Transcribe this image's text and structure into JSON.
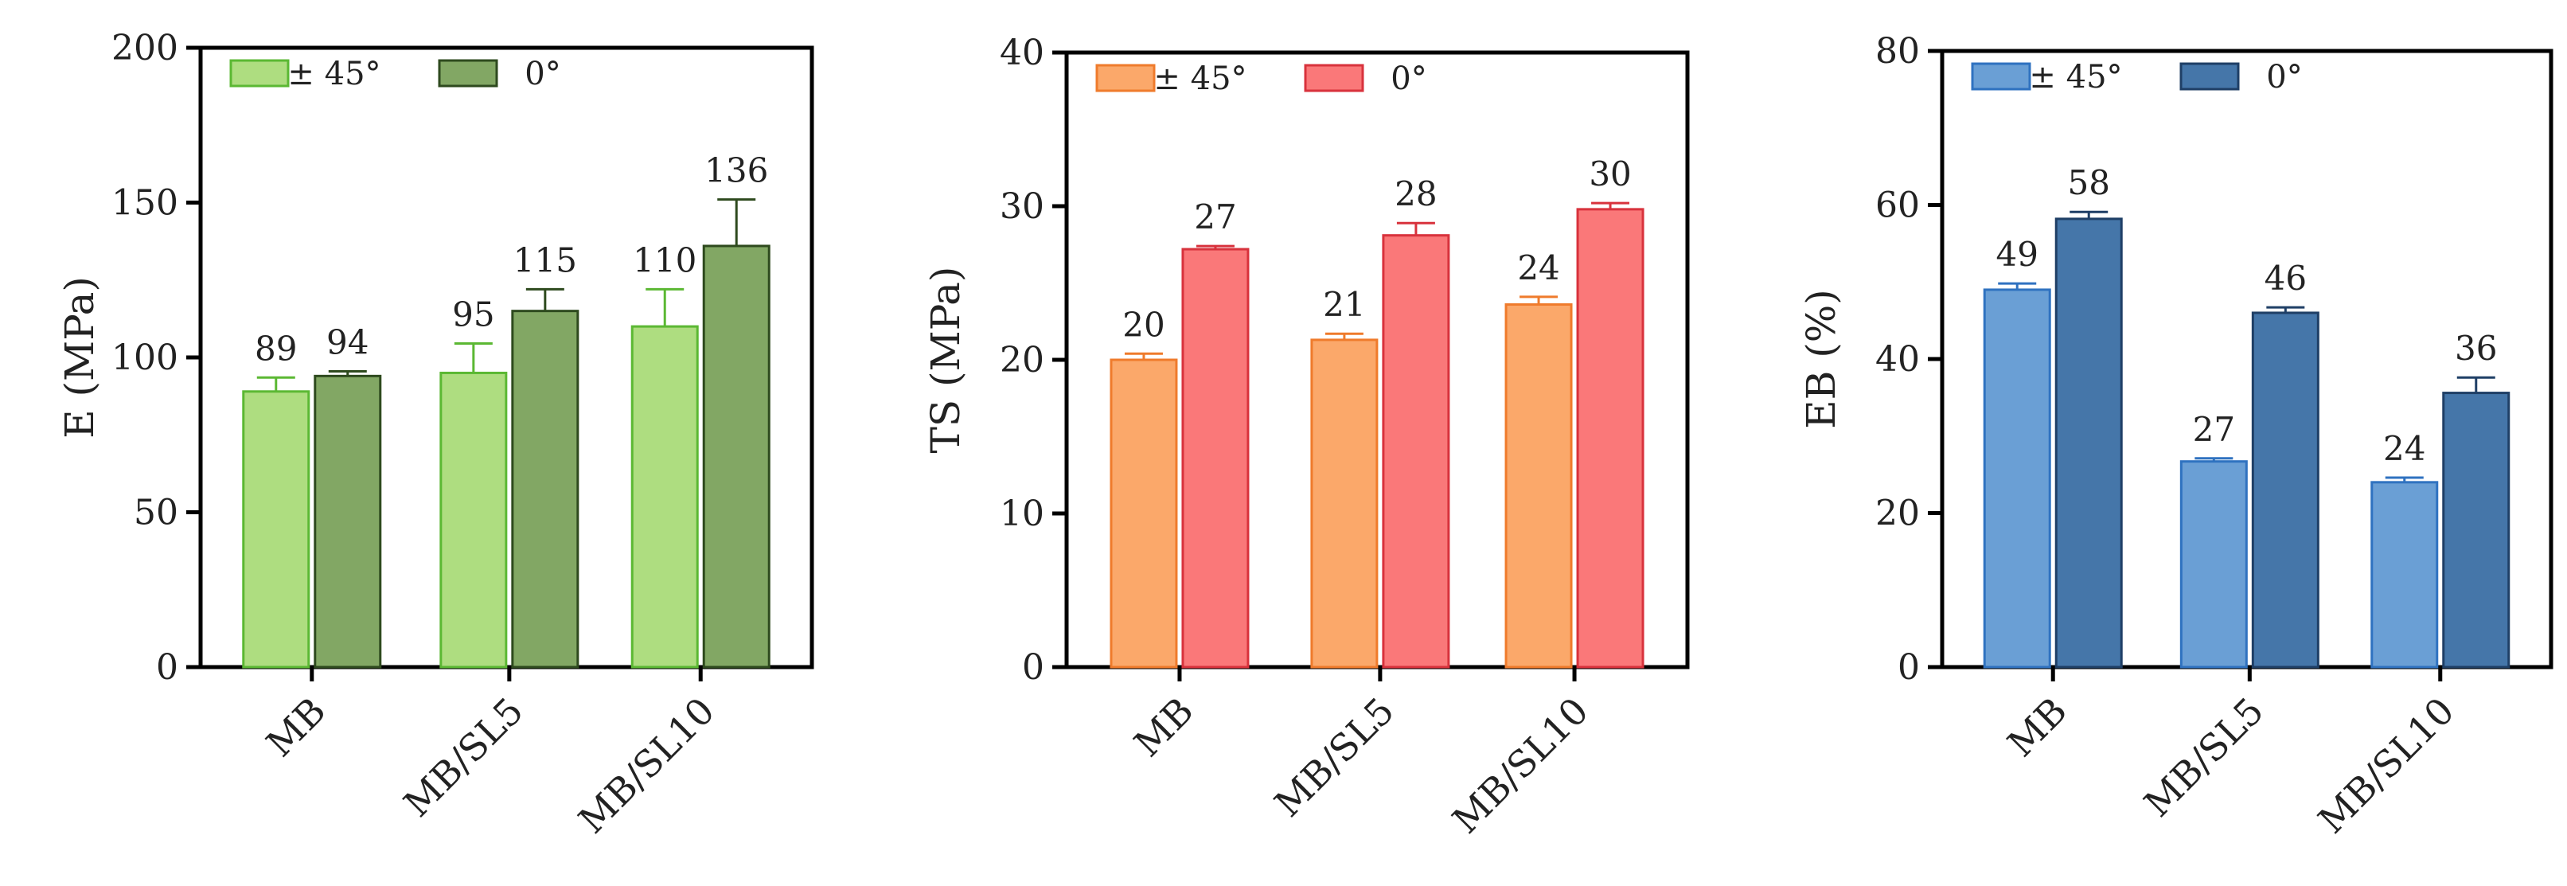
{
  "figure": {
    "background": "#ffffff"
  },
  "chart_data": [
    {
      "type": "bar",
      "ylabel": "E (MPa)",
      "ylim": [
        0,
        200
      ],
      "yticks": [
        0,
        50,
        100,
        150,
        200
      ],
      "categories": [
        "MB",
        "MB/SL5",
        "MB/SL10"
      ],
      "legend_position": "top-left",
      "series": [
        {
          "name": "± 45°",
          "values": [
            89,
            95,
            110
          ],
          "errors": [
            4.5,
            9.5,
            12
          ],
          "fill": "#aedd80",
          "stroke": "#5bb833"
        },
        {
          "name": "0°",
          "values": [
            94,
            115,
            136
          ],
          "errors": [
            1.5,
            7,
            15
          ],
          "fill": "#82a764",
          "stroke": "#2e4a1e"
        }
      ],
      "data_labels": [
        [
          "89",
          "95",
          "110"
        ],
        [
          "94",
          "115",
          "136"
        ]
      ]
    },
    {
      "type": "bar",
      "ylabel": "TS (MPa)",
      "ylim": [
        0,
        40
      ],
      "yticks": [
        0,
        10,
        20,
        30,
        40
      ],
      "categories": [
        "MB",
        "MB/SL5",
        "MB/SL10"
      ],
      "legend_position": "top-left",
      "series": [
        {
          "name": "± 45°",
          "values": [
            20,
            21.3,
            23.6
          ],
          "errors": [
            0.4,
            0.4,
            0.5
          ],
          "fill": "#fba86a",
          "stroke": "#ef7b2c"
        },
        {
          "name": "0°",
          "values": [
            27.2,
            28.1,
            29.8
          ],
          "errors": [
            0.2,
            0.8,
            0.4
          ],
          "fill": "#fa7879",
          "stroke": "#d8323c"
        }
      ],
      "data_labels": [
        [
          "20",
          "21",
          "24"
        ],
        [
          "27",
          "28",
          "30"
        ]
      ]
    },
    {
      "type": "bar",
      "ylabel": "EB (%)",
      "ylim": [
        0,
        80
      ],
      "yticks": [
        0,
        20,
        40,
        60,
        80
      ],
      "categories": [
        "MB",
        "MB/SL5",
        "MB/SL10"
      ],
      "legend_position": "top-left",
      "series": [
        {
          "name": "± 45°",
          "values": [
            49,
            26.7,
            24
          ],
          "errors": [
            0.8,
            0.4,
            0.6
          ],
          "fill": "#6a9fd5",
          "stroke": "#2f72c0"
        },
        {
          "name": "0°",
          "values": [
            58.2,
            46,
            35.6
          ],
          "errors": [
            0.9,
            0.7,
            2
          ],
          "fill": "#4576a9",
          "stroke": "#1f3f66"
        }
      ],
      "data_labels": [
        [
          "49",
          "27",
          "24"
        ],
        [
          "58",
          "46",
          "36"
        ]
      ]
    }
  ]
}
